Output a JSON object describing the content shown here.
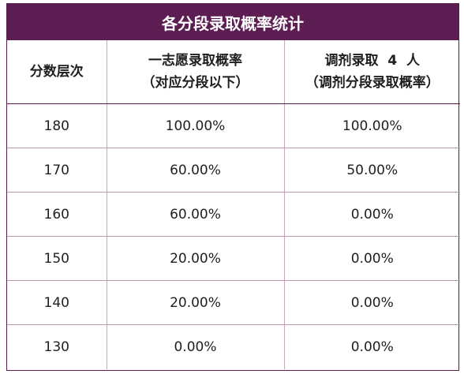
{
  "title": "各分段录取概率统计",
  "headers": {
    "score_level": "分数层次",
    "first_choice_line1": "一志愿录取概率",
    "first_choice_line2": "（对应分段以下）",
    "adjust_line1": "调剂录取  4  人",
    "adjust_line2": "（调剂分段录取概率）"
  },
  "rows": [
    {
      "score": "180",
      "first_choice": "100.00%",
      "adjust": "100.00%"
    },
    {
      "score": "170",
      "first_choice": "60.00%",
      "adjust": "50.00%"
    },
    {
      "score": "160",
      "first_choice": "60.00%",
      "adjust": "0.00%"
    },
    {
      "score": "150",
      "first_choice": "20.00%",
      "adjust": "0.00%"
    },
    {
      "score": "140",
      "first_choice": "20.00%",
      "adjust": "0.00%"
    },
    {
      "score": "130",
      "first_choice": "0.00%",
      "adjust": "0.00%"
    }
  ],
  "colors": {
    "header_bg": "#5c1d52",
    "border": "#5a1a4f"
  }
}
